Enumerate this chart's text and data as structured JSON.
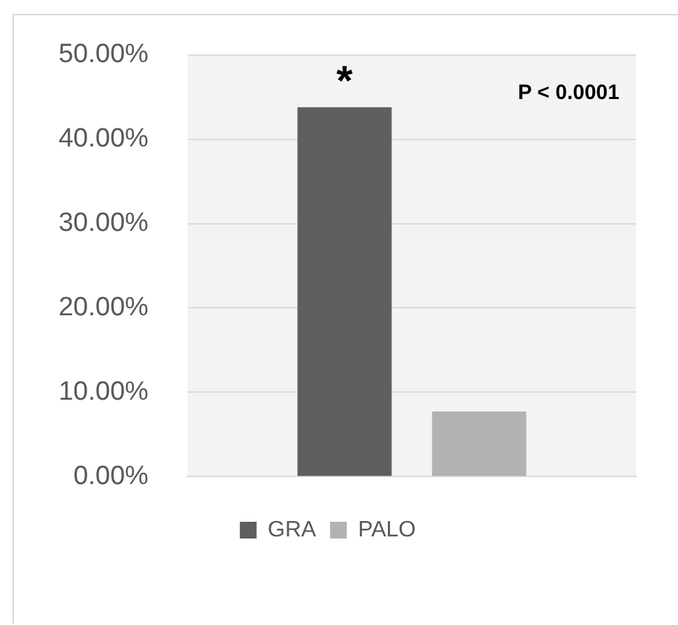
{
  "chart_data": {
    "type": "bar",
    "categories": [
      null
    ],
    "series": [
      {
        "name": "GRA",
        "color": "#5f5f5f",
        "values": [
          43.8
        ]
      },
      {
        "name": "PALO",
        "color": "#b2b2b2",
        "values": [
          7.7
        ]
      }
    ],
    "ylim": [
      0,
      50
    ],
    "yticks": [
      {
        "value": 0,
        "label": "0.00%"
      },
      {
        "value": 10,
        "label": "10.00%"
      },
      {
        "value": 20,
        "label": "20.00%"
      },
      {
        "value": 30,
        "label": "30.00%"
      },
      {
        "value": 40,
        "label": "40.00%"
      },
      {
        "value": 50,
        "label": "50.00%"
      }
    ],
    "grid": "y",
    "legend": "bottom",
    "annotations": [
      "*",
      "P < 0.0001"
    ]
  }
}
